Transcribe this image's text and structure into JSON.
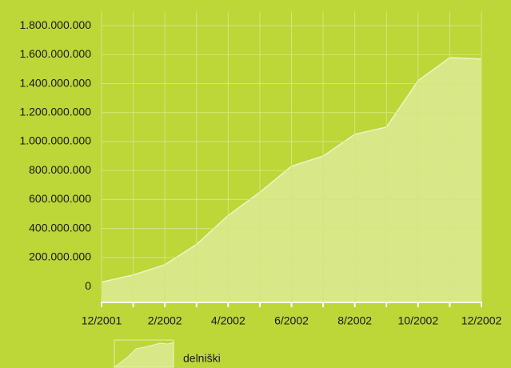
{
  "chart_data": {
    "type": "area",
    "categories": [
      "12/2001",
      null,
      "2/2002",
      null,
      "4/2002",
      null,
      "6/2002",
      null,
      "8/2002",
      null,
      "10/2002",
      null,
      "12/2002"
    ],
    "series": [
      {
        "name": "delniški",
        "color": "#d8e788",
        "values": [
          30000000,
          80000000,
          150000000,
          290000000,
          490000000,
          650000000,
          830000000,
          900000000,
          1050000000,
          1100000000,
          1420000000,
          1580000000,
          1570000000
        ]
      }
    ],
    "ylim": [
      -110000000,
      1900000000
    ],
    "yticks": [
      0,
      {
        "value": 200000000,
        "label": "200.000.000"
      },
      {
        "value": 400000000,
        "label": "400.000.000"
      },
      {
        "value": 600000000,
        "label": "600.000.000"
      },
      {
        "value": 800000000,
        "label": "800.000.000"
      },
      {
        "value": 1000000000,
        "label": "1.000.000.000"
      },
      {
        "value": 1200000000,
        "label": "1.200.000.000"
      },
      {
        "value": 1400000000,
        "label": "1.400.000.000"
      },
      {
        "value": 1600000000,
        "label": "1.600.000.000"
      },
      {
        "value": 1800000000,
        "label": "1.800.000.000"
      }
    ],
    "grid": true
  }
}
